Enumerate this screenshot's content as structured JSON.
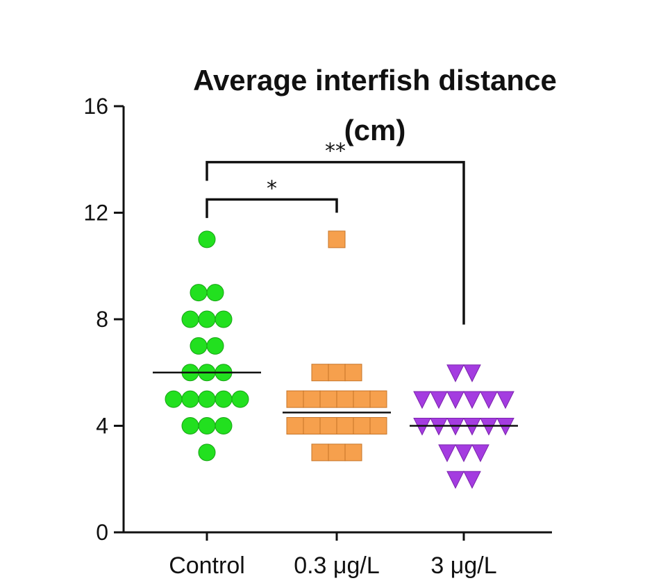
{
  "chart_data": {
    "type": "scatter",
    "title_lines": [
      "Average interfish distance",
      "(cm)"
    ],
    "categories": [
      "Control",
      "0.3 μg/L",
      "3 μg/L"
    ],
    "yticks": [
      "0",
      "4",
      "8",
      "12",
      "16"
    ],
    "ylim": [
      0,
      16
    ],
    "grid": false,
    "series": [
      {
        "category": "Control",
        "marker": "circle",
        "color": "#22e01f",
        "stroke": "#17a414",
        "mean": 6.0,
        "rows": [
          {
            "y": 11.0,
            "n": 1
          },
          {
            "y": 9.0,
            "n": 2
          },
          {
            "y": 8.0,
            "n": 3
          },
          {
            "y": 7.0,
            "n": 2
          },
          {
            "y": 6.0,
            "n": 3
          },
          {
            "y": 5.0,
            "n": 5
          },
          {
            "y": 4.0,
            "n": 3
          },
          {
            "y": 3.0,
            "n": 1
          }
        ]
      },
      {
        "category": "0.3 μg/L",
        "marker": "square",
        "color": "#f6a04d",
        "stroke": "#c57428",
        "mean": 4.5,
        "rows": [
          {
            "y": 11.0,
            "n": 1
          },
          {
            "y": 6.0,
            "n": 3
          },
          {
            "y": 5.0,
            "n": 6
          },
          {
            "y": 4.0,
            "n": 6
          },
          {
            "y": 3.0,
            "n": 3
          }
        ]
      },
      {
        "category": "3 μg/L",
        "marker": "triangle-down",
        "color": "#a43ce0",
        "stroke": "#7a22ad",
        "mean": 4.0,
        "rows": [
          {
            "y": 6.0,
            "n": 2
          },
          {
            "y": 5.0,
            "n": 6
          },
          {
            "y": 4.0,
            "n": 6
          },
          {
            "y": 3.0,
            "n": 3
          },
          {
            "y": 2.0,
            "n": 2
          }
        ]
      }
    ],
    "significance": [
      {
        "from": "Control",
        "to": "0.3 μg/L",
        "label": "*",
        "y": 12.5,
        "to_end": 12.0
      },
      {
        "from": "Control",
        "to": "3 μg/L",
        "label": "**",
        "y": 13.9,
        "to_end": 7.8
      }
    ]
  }
}
